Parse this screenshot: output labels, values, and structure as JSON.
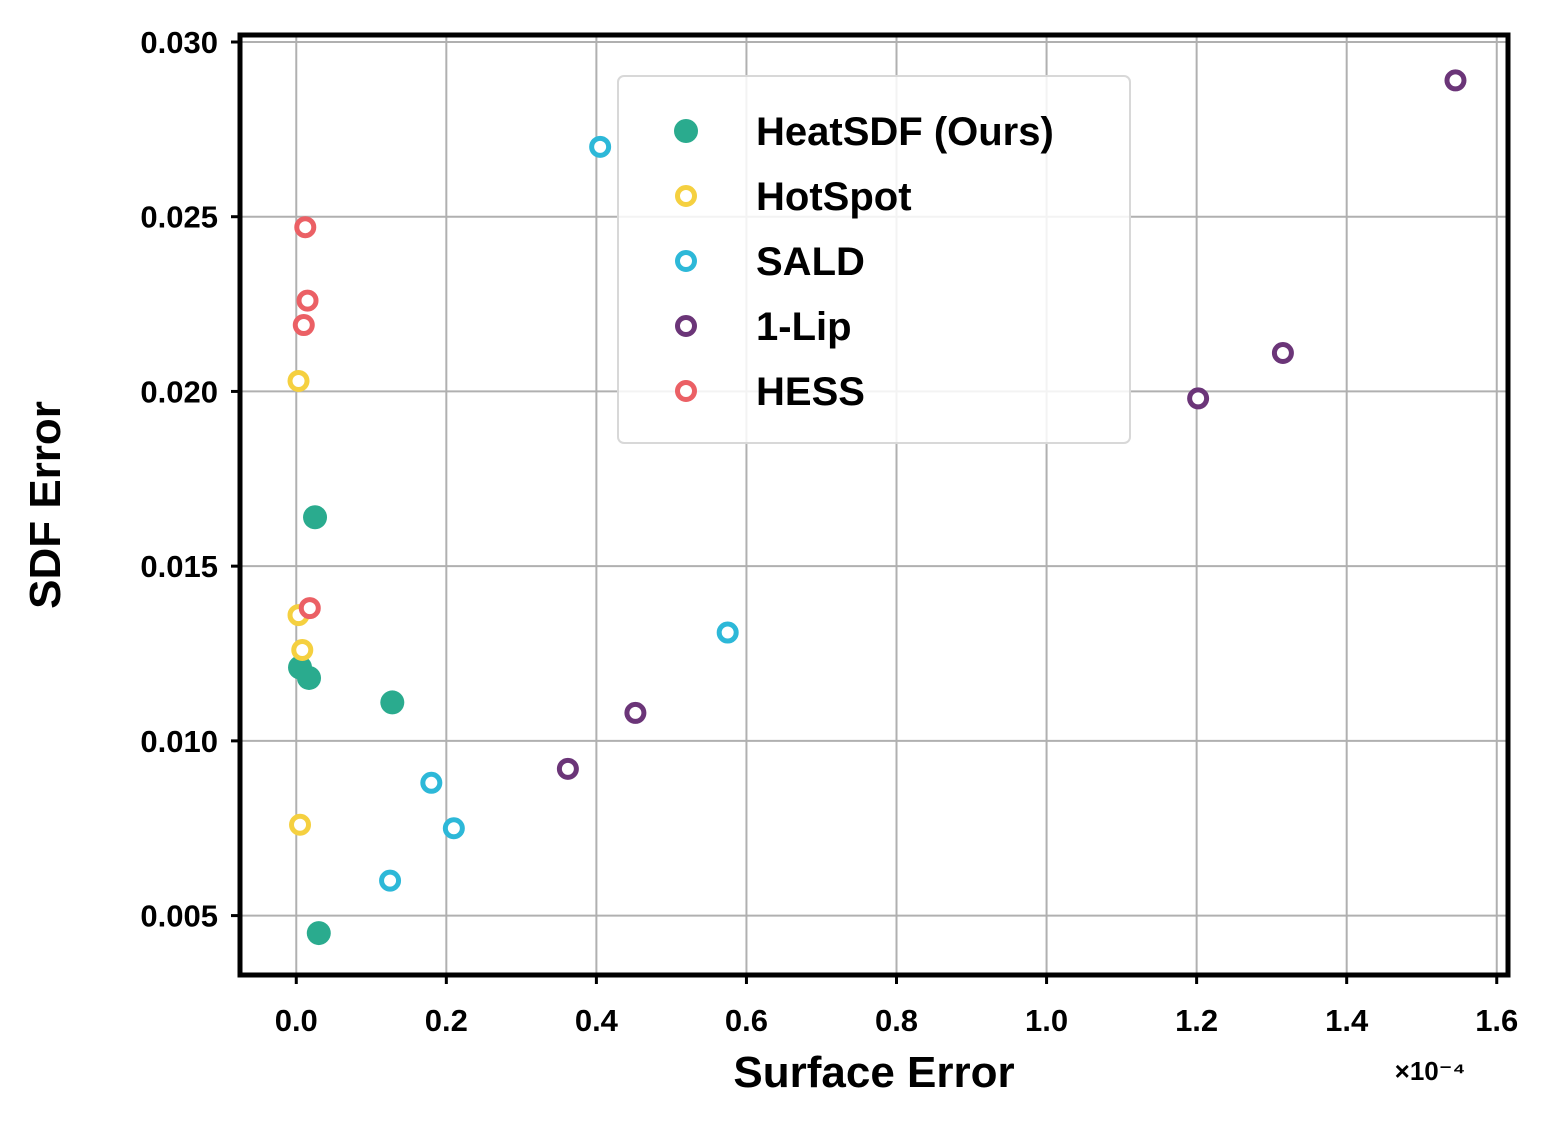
{
  "chart_data": {
    "type": "scatter",
    "xlabel": "Surface Error",
    "ylabel": "SDF Error",
    "x_exponent_label": "×10⁻⁴",
    "xlim": [
      -0.075,
      1.615
    ],
    "ylim": [
      0.0033,
      0.0302
    ],
    "xticks": [
      0.0,
      0.2,
      0.4,
      0.6,
      0.8,
      1.0,
      1.2,
      1.4,
      1.6
    ],
    "xtick_labels": [
      "0.0",
      "0.2",
      "0.4",
      "0.6",
      "0.8",
      "1.0",
      "1.2",
      "1.4",
      "1.6"
    ],
    "yticks": [
      0.005,
      0.01,
      0.015,
      0.02,
      0.025,
      0.03
    ],
    "ytick_labels": [
      "0.005",
      "0.010",
      "0.015",
      "0.020",
      "0.025",
      "0.030"
    ],
    "grid": true,
    "legend_position": "upper-center",
    "series": [
      {
        "name": "HeatSDF (Ours)",
        "color": "#2aab8e",
        "marker": "filled-circle",
        "points": [
          [
            0.025,
            0.0164
          ],
          [
            0.005,
            0.0121
          ],
          [
            0.017,
            0.0118
          ],
          [
            0.128,
            0.0111
          ],
          [
            0.03,
            0.0045
          ]
        ]
      },
      {
        "name": "HotSpot",
        "color": "#f5d040",
        "marker": "open-circle",
        "points": [
          [
            0.003,
            0.0203
          ],
          [
            0.003,
            0.0136
          ],
          [
            0.008,
            0.0126
          ],
          [
            0.005,
            0.0076
          ]
        ]
      },
      {
        "name": "SALD",
        "color": "#2db8d8",
        "marker": "open-circle",
        "points": [
          [
            0.405,
            0.027
          ],
          [
            0.575,
            0.0131
          ],
          [
            0.18,
            0.0088
          ],
          [
            0.21,
            0.0075
          ],
          [
            0.125,
            0.006
          ]
        ]
      },
      {
        "name": "1-Lip",
        "color": "#6b3578",
        "marker": "open-circle",
        "points": [
          [
            1.545,
            0.0289
          ],
          [
            1.315,
            0.0211
          ],
          [
            1.202,
            0.0198
          ],
          [
            0.452,
            0.0108
          ],
          [
            0.362,
            0.0092
          ]
        ]
      },
      {
        "name": "HESS",
        "color": "#eb6065",
        "marker": "open-circle",
        "points": [
          [
            0.012,
            0.0247
          ],
          [
            0.015,
            0.0226
          ],
          [
            0.01,
            0.0219
          ],
          [
            0.018,
            0.0138
          ]
        ]
      }
    ]
  }
}
